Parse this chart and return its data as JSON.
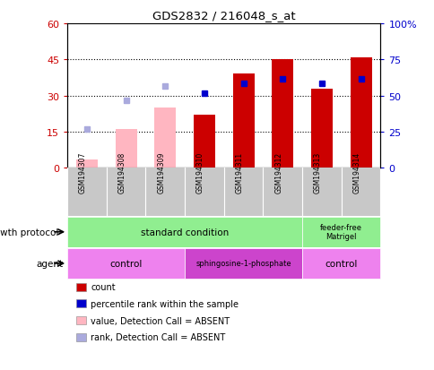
{
  "title": "GDS2832 / 216048_s_at",
  "samples": [
    "GSM194307",
    "GSM194308",
    "GSM194309",
    "GSM194310",
    "GSM194311",
    "GSM194312",
    "GSM194313",
    "GSM194314"
  ],
  "count_values": [
    null,
    null,
    null,
    22,
    39,
    45,
    33,
    46
  ],
  "count_absent": [
    3.5,
    16,
    25,
    null,
    null,
    null,
    null,
    null
  ],
  "rank_present": [
    null,
    null,
    null,
    31,
    35,
    37,
    35,
    37
  ],
  "rank_absent": [
    16,
    null,
    34,
    null,
    null,
    null,
    null,
    null
  ],
  "rank_absent2": [
    null,
    28,
    null,
    null,
    null,
    null,
    null,
    null
  ],
  "ylim_left": [
    0,
    60
  ],
  "ylim_right": [
    0,
    100
  ],
  "yticks_left": [
    0,
    15,
    30,
    45,
    60
  ],
  "yticks_right": [
    0,
    25,
    50,
    75,
    100
  ],
  "ytick_labels_left": [
    "0",
    "15",
    "30",
    "45",
    "60"
  ],
  "ytick_labels_right": [
    "0",
    "25",
    "50",
    "75",
    "100%"
  ],
  "bar_color_present": "#CC0000",
  "bar_color_absent": "#FFB6C1",
  "dot_color_present": "#0000CC",
  "dot_color_absent": "#AAAADD",
  "left_tick_color": "#CC0000",
  "right_tick_color": "#0000CC",
  "growth_standard_color": "#90EE90",
  "growth_feeder_color": "#90EE90",
  "agent_control_color": "#EE82EE",
  "agent_sphingo_color": "#CC44CC",
  "sample_bg_color": "#C8C8C8",
  "legend_items": [
    {
      "label": "count",
      "color": "#CC0000"
    },
    {
      "label": "percentile rank within the sample",
      "color": "#0000CC"
    },
    {
      "label": "value, Detection Call = ABSENT",
      "color": "#FFB6C1"
    },
    {
      "label": "rank, Detection Call = ABSENT",
      "color": "#AAAADD"
    }
  ]
}
